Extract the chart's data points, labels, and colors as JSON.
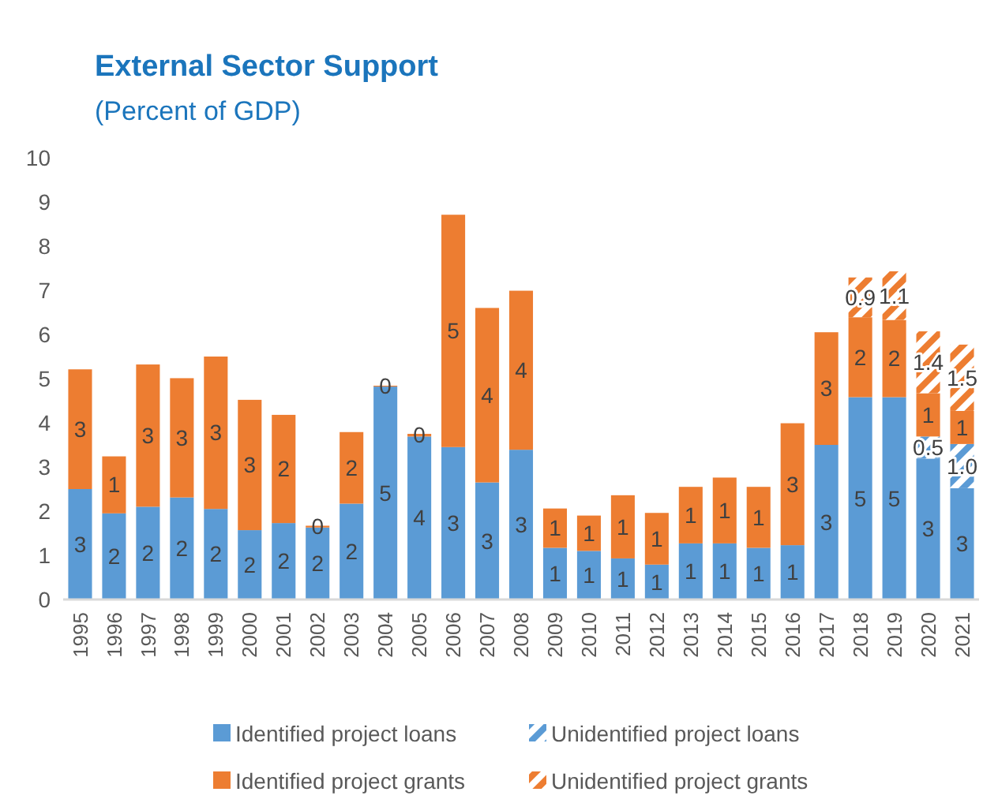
{
  "chart_data": {
    "type": "bar",
    "title": "External Sector Support",
    "subtitle": "(Percent of GDP)",
    "stacked": true,
    "legend": "bottom",
    "ylim": [
      0,
      10
    ],
    "yticks": [
      0,
      1,
      2,
      3,
      4,
      5,
      6,
      7,
      8,
      9,
      10
    ],
    "categories": [
      "1995",
      "1996",
      "1997",
      "1998",
      "1999",
      "2000",
      "2001",
      "2002",
      "2003",
      "2004",
      "2005",
      "2006",
      "2007",
      "2008",
      "2009",
      "2010",
      "2011",
      "2012",
      "2013",
      "2014",
      "2015",
      "2016",
      "2017",
      "2018",
      "2019",
      "2020",
      "2021"
    ],
    "series": [
      {
        "name": "Identified project loans",
        "color": "#5b9bd5",
        "values": [
          2.5,
          1.95,
          2.1,
          2.31,
          2.05,
          1.57,
          1.73,
          1.63,
          2.17,
          4.82,
          3.69,
          3.45,
          2.65,
          3.39,
          1.17,
          1.1,
          0.93,
          0.79,
          1.27,
          1.27,
          1.17,
          1.23,
          3.5,
          4.58,
          4.58,
          3.19,
          2.52
        ],
        "value_labels": [
          "3",
          "2",
          "2",
          "2",
          "2",
          "2",
          "2",
          "2",
          "2",
          "5",
          "4",
          "3",
          "3",
          "3",
          "1",
          "1",
          "1",
          "1",
          "1",
          "1",
          "1",
          "1",
          "3",
          "5",
          "5",
          "3",
          "3"
        ]
      },
      {
        "name": "Unidentified project loans",
        "color": "#5b9bd5",
        "values": [
          null,
          null,
          null,
          null,
          null,
          null,
          null,
          null,
          null,
          null,
          null,
          null,
          null,
          null,
          null,
          null,
          null,
          null,
          null,
          null,
          null,
          null,
          null,
          null,
          null,
          0.5,
          1.0
        ],
        "value_labels": [
          null,
          null,
          null,
          null,
          null,
          null,
          null,
          null,
          null,
          null,
          null,
          null,
          null,
          null,
          null,
          null,
          null,
          null,
          null,
          null,
          null,
          null,
          null,
          null,
          null,
          "0.5",
          "1.0"
        ]
      },
      {
        "name": "Identified project grants",
        "color": "#ed7d31",
        "values": [
          2.71,
          1.29,
          3.22,
          2.7,
          3.45,
          2.95,
          2.45,
          0.04,
          1.62,
          0.02,
          0.06,
          5.26,
          3.95,
          3.6,
          0.89,
          0.8,
          1.43,
          1.17,
          1.28,
          1.49,
          1.38,
          2.76,
          2.55,
          1.81,
          1.75,
          0.98,
          0.75
        ],
        "value_labels": [
          "3",
          "1",
          "3",
          "3",
          "3",
          "3",
          "2",
          "0",
          "2",
          "0",
          "0",
          "5",
          "4",
          "4",
          "1",
          "1",
          "1",
          "1",
          "1",
          "1",
          "1",
          "3",
          "3",
          "2",
          "2",
          "1",
          "1"
        ]
      },
      {
        "name": "Unidentified project grants",
        "color": "#ed7d31",
        "values": [
          null,
          null,
          null,
          null,
          null,
          null,
          null,
          null,
          null,
          null,
          null,
          null,
          null,
          null,
          null,
          null,
          null,
          null,
          null,
          null,
          null,
          null,
          null,
          0.9,
          1.1,
          1.4,
          1.5
        ],
        "value_labels": [
          null,
          null,
          null,
          null,
          null,
          null,
          null,
          null,
          null,
          null,
          null,
          null,
          null,
          null,
          null,
          null,
          null,
          null,
          null,
          null,
          null,
          null,
          null,
          "0.9",
          "1.1",
          "1.4",
          "1.5"
        ]
      }
    ]
  }
}
